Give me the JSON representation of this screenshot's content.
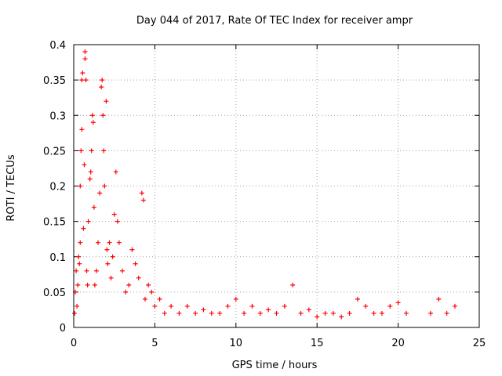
{
  "chart_data": {
    "type": "scatter",
    "title": "Day 044 of 2017, Rate Of TEC Index for receiver ampr",
    "xlabel": "GPS time / hours",
    "ylabel": "ROTI / TECUs",
    "xlim": [
      0,
      25
    ],
    "ylim": [
      0,
      0.4
    ],
    "x_ticks": [
      0,
      5,
      10,
      15,
      20,
      25
    ],
    "x_tick_labels": [
      "0",
      "5",
      "10",
      "15",
      "20",
      "25"
    ],
    "y_ticks": [
      0,
      0.05,
      0.1,
      0.15,
      0.2,
      0.25,
      0.3,
      0.35,
      0.4
    ],
    "y_tick_labels": [
      "0",
      "0.05",
      "0.1",
      "0.15",
      "0.2",
      "0.25",
      "0.3",
      "0.35",
      "0.4"
    ],
    "grid": true,
    "marker": "plus",
    "color": "#ff0000",
    "series": [
      {
        "name": "ROTI",
        "points": [
          [
            0.05,
            0.02
          ],
          [
            0.1,
            0.05
          ],
          [
            0.15,
            0.08
          ],
          [
            0.2,
            0.03
          ],
          [
            0.25,
            0.06
          ],
          [
            0.3,
            0.1
          ],
          [
            0.35,
            0.09
          ],
          [
            0.4,
            0.12
          ],
          [
            0.4,
            0.2
          ],
          [
            0.45,
            0.25
          ],
          [
            0.5,
            0.28
          ],
          [
            0.5,
            0.35
          ],
          [
            0.55,
            0.36
          ],
          [
            0.6,
            0.14
          ],
          [
            0.65,
            0.23
          ],
          [
            0.7,
            0.38
          ],
          [
            0.7,
            0.39
          ],
          [
            0.75,
            0.35
          ],
          [
            0.8,
            0.08
          ],
          [
            0.85,
            0.06
          ],
          [
            0.9,
            0.15
          ],
          [
            1.0,
            0.21
          ],
          [
            1.05,
            0.22
          ],
          [
            1.1,
            0.25
          ],
          [
            1.15,
            0.3
          ],
          [
            1.2,
            0.29
          ],
          [
            1.25,
            0.17
          ],
          [
            1.3,
            0.06
          ],
          [
            1.4,
            0.08
          ],
          [
            1.5,
            0.12
          ],
          [
            1.6,
            0.19
          ],
          [
            1.7,
            0.34
          ],
          [
            1.75,
            0.35
          ],
          [
            1.8,
            0.3
          ],
          [
            1.85,
            0.25
          ],
          [
            1.9,
            0.2
          ],
          [
            2.0,
            0.32
          ],
          [
            2.05,
            0.11
          ],
          [
            2.1,
            0.09
          ],
          [
            2.2,
            0.12
          ],
          [
            2.3,
            0.07
          ],
          [
            2.4,
            0.1
          ],
          [
            2.5,
            0.16
          ],
          [
            2.6,
            0.22
          ],
          [
            2.7,
            0.15
          ],
          [
            2.8,
            0.12
          ],
          [
            3.0,
            0.08
          ],
          [
            3.2,
            0.05
          ],
          [
            3.4,
            0.06
          ],
          [
            3.6,
            0.11
          ],
          [
            3.8,
            0.09
          ],
          [
            4.0,
            0.07
          ],
          [
            4.2,
            0.19
          ],
          [
            4.3,
            0.18
          ],
          [
            4.4,
            0.04
          ],
          [
            4.6,
            0.06
          ],
          [
            4.8,
            0.05
          ],
          [
            5.0,
            0.03
          ],
          [
            5.3,
            0.04
          ],
          [
            5.6,
            0.02
          ],
          [
            6.0,
            0.03
          ],
          [
            6.5,
            0.02
          ],
          [
            7.0,
            0.03
          ],
          [
            7.5,
            0.02
          ],
          [
            8.0,
            0.025
          ],
          [
            8.5,
            0.02
          ],
          [
            9.0,
            0.02
          ],
          [
            9.5,
            0.03
          ],
          [
            10.0,
            0.04
          ],
          [
            10.5,
            0.02
          ],
          [
            11.0,
            0.03
          ],
          [
            11.5,
            0.02
          ],
          [
            12.0,
            0.025
          ],
          [
            12.5,
            0.02
          ],
          [
            13.0,
            0.03
          ],
          [
            13.5,
            0.06
          ],
          [
            14.0,
            0.02
          ],
          [
            14.5,
            0.025
          ],
          [
            15.0,
            0.015
          ],
          [
            15.5,
            0.02
          ],
          [
            16.0,
            0.02
          ],
          [
            16.5,
            0.015
          ],
          [
            17.0,
            0.02
          ],
          [
            17.5,
            0.04
          ],
          [
            18.0,
            0.03
          ],
          [
            18.5,
            0.02
          ],
          [
            19.0,
            0.02
          ],
          [
            19.5,
            0.03
          ],
          [
            20.0,
            0.035
          ],
          [
            20.5,
            0.02
          ],
          [
            22.0,
            0.02
          ],
          [
            22.5,
            0.04
          ],
          [
            23.0,
            0.02
          ],
          [
            23.5,
            0.03
          ]
        ]
      }
    ]
  }
}
